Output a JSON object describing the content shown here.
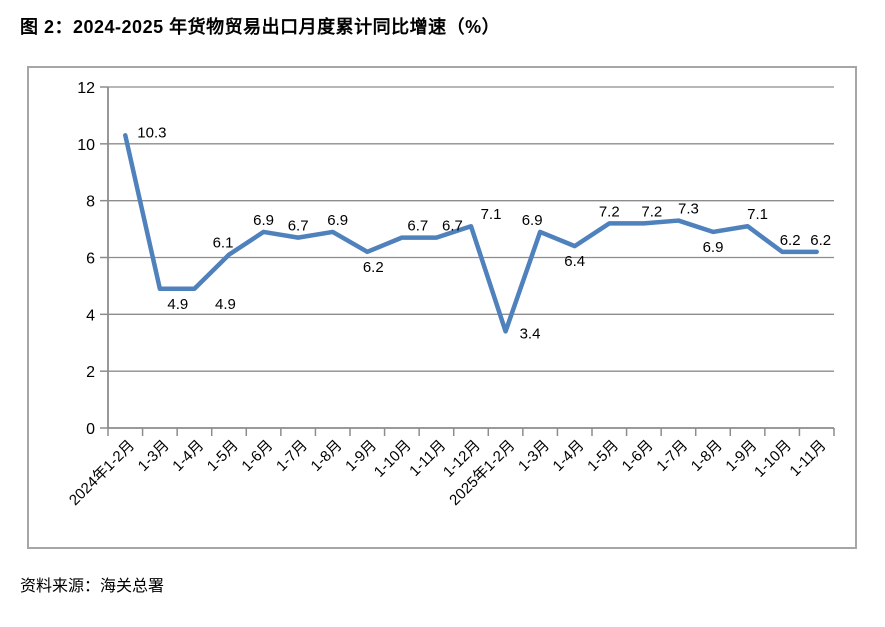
{
  "page": {
    "title": "图 2：2024-2025 年货物贸易出口月度累计同比增速（%）",
    "source": "资料来源：海关总署"
  },
  "chart_data": {
    "type": "line",
    "title": "图 2：2024-2025 年货物贸易出口月度累计同比增速（%）",
    "categories": [
      "2024年1-2月",
      "1-3月",
      "1-4月",
      "1-5月",
      "1-6月",
      "1-7月",
      "1-8月",
      "1-9月",
      "1-10月",
      "1-11月",
      "1-12月",
      "2025年1-2月",
      "1-3月",
      "1-4月",
      "1-5月",
      "1-6月",
      "1-7月",
      "1-8月",
      "1-9月",
      "1-10月",
      "1-11月"
    ],
    "values": [
      10.3,
      4.9,
      4.9,
      6.1,
      6.9,
      6.7,
      6.9,
      6.2,
      6.7,
      6.7,
      7.1,
      3.4,
      6.9,
      6.4,
      7.2,
      7.2,
      7.3,
      6.9,
      7.1,
      6.2,
      6.2
    ],
    "xlabel": "",
    "ylabel": "",
    "ylim": [
      0,
      12
    ],
    "yticks": [
      0,
      2,
      4,
      6,
      8,
      10,
      12
    ],
    "grid": true,
    "legend": false,
    "label_positions": [
      "ur",
      "b",
      "b",
      "a",
      "a",
      "a",
      "a",
      "b",
      "a",
      "a",
      "a",
      "r",
      "a",
      "b",
      "a",
      "a",
      "a",
      "b",
      "a",
      "a",
      "a"
    ],
    "label_dx": [
      0,
      18,
      31,
      -6,
      0,
      0,
      5,
      6,
      16,
      16,
      20,
      0,
      -8,
      0,
      0,
      8,
      10,
      0,
      10,
      8,
      4
    ],
    "line_color": "#4F81BD",
    "grid_color": "#8C8C8C",
    "axis_color": "#8C8C8C",
    "frame_color": "#A6A6A6",
    "text_color": "#000000"
  }
}
